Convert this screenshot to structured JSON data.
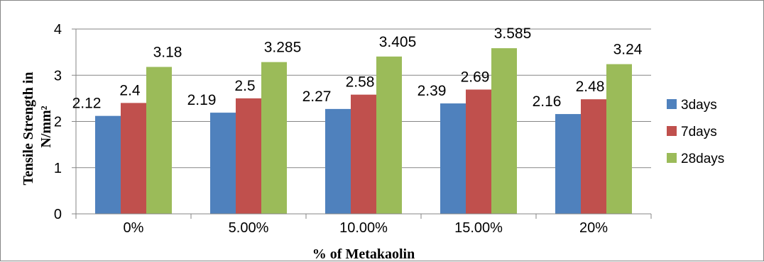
{
  "chart_data": {
    "type": "bar",
    "title": "",
    "xlabel": "% of Metakaolin",
    "ylabel_lines": [
      "Tensile Strength in",
      "N/mm²"
    ],
    "categories": [
      "0%",
      "5.00%",
      "10.00%",
      "15.00%",
      "20%"
    ],
    "series": [
      {
        "name": "3days",
        "color": "#4F81BD",
        "values": [
          2.12,
          2.19,
          2.27,
          2.39,
          2.16
        ],
        "labels": [
          "2.12",
          "2.19",
          "2.27",
          "2.39",
          "2.16"
        ]
      },
      {
        "name": "7days",
        "color": "#C0504D",
        "values": [
          2.4,
          2.5,
          2.58,
          2.69,
          2.48
        ],
        "labels": [
          "2.4",
          "2.5",
          "2.58",
          "2.69",
          "2.48"
        ]
      },
      {
        "name": "28days",
        "color": "#9BBB59",
        "values": [
          3.18,
          3.285,
          3.405,
          3.585,
          3.24
        ],
        "labels": [
          "3.18",
          "3.285",
          "3.405",
          "3.585",
          "3.24"
        ]
      }
    ],
    "ylim": [
      0,
      4
    ],
    "yticks": [
      "0",
      "1",
      "2",
      "3",
      "4"
    ],
    "grid": true,
    "legend_position": "right",
    "gridline_color": "#868686"
  }
}
